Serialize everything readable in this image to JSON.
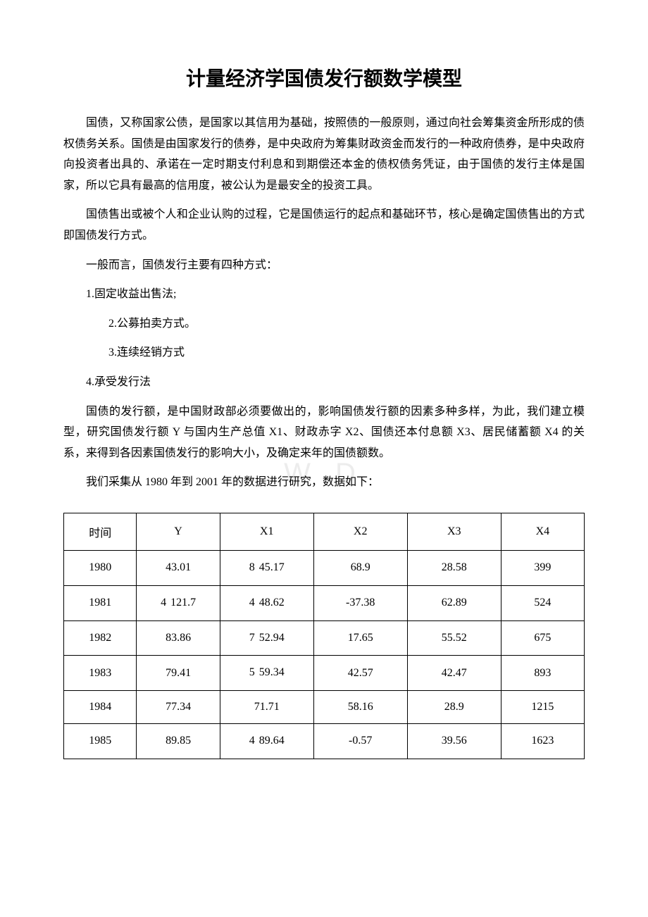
{
  "title": "计量经济学国债发行额数学模型",
  "watermark": "W    D",
  "paragraphs": {
    "p1": "国债，又称国家公债，是国家以其信用为基础，按照债的一般原则，通过向社会筹集资金所形成的债权债务关系。国债是由国家发行的债券，是中央政府为筹集财政资金而发行的一种政府债券，是中央政府向投资者出具的、承诺在一定时期支付利息和到期偿还本金的债权债务凭证，由于国债的发行主体是国家，所以它具有最高的信用度，被公认为是最安全的投资工具。",
    "p2": "国债售出或被个人和企业认购的过程，它是国债运行的起点和基础环节，核心是确定国债售出的方式即国债发行方式。",
    "p3": "一般而言，国债发行主要有四种方式：",
    "m1": "1.固定收益出售法;",
    "m2": "2.公募拍卖方式。",
    "m3": "3.连续经销方式",
    "m4": "4.承受发行法",
    "p4": "国债的发行额，是中国财政部必须要做出的，影响国债发行额的因素多种多样，为此，我们建立模型，研究国债发行额 Y 与国内生产总值 X1、财政赤字 X2、国债还本付息额 X3、居民储蓄额 X4 的关系，来得到各因素国债发行的影响大小，及确定来年的国债额数。",
    "p5": "我们采集从 1980 年到 2001 年的数据进行研究，数据如下："
  },
  "table": {
    "columns": [
      "时间",
      "Y",
      "X1",
      "X2",
      "X3",
      "X4"
    ],
    "rows": [
      {
        "time": "1980",
        "y": {
          "sub": "",
          "main": "43.01"
        },
        "x1": {
          "sub": "8",
          "main": "45.17"
        },
        "x2": "68.9",
        "x3": "28.58",
        "x4": "399"
      },
      {
        "time": "1981",
        "y": {
          "sub": "4",
          "main": "121.7"
        },
        "x1": {
          "sub": "4",
          "main": "48.62"
        },
        "x2": "-37.38",
        "x3": "62.89",
        "x4": "524"
      },
      {
        "time": "1982",
        "y": {
          "sub": "",
          "main": "83.86"
        },
        "x1": {
          "sub": "7",
          "main": "52.94"
        },
        "x2": "17.65",
        "x3": "55.52",
        "x4": "675"
      },
      {
        "time": "1983",
        "y": {
          "sub": "",
          "main": "79.41"
        },
        "x1": {
          "sub": "5",
          "main": "59.34"
        },
        "x2": "42.57",
        "x3": "42.47",
        "x4": "893"
      },
      {
        "time": "1984",
        "y": {
          "sub": "",
          "main": "77.34"
        },
        "x1": {
          "sub": "",
          "main": "71.71"
        },
        "x2": "58.16",
        "x3": "28.9",
        "x4": "1215"
      },
      {
        "time": "1985",
        "y": {
          "sub": "",
          "main": "89.85"
        },
        "x1": {
          "sub": "4",
          "main": "89.64"
        },
        "x2": "-0.57",
        "x3": "39.56",
        "x4": "1623"
      }
    ],
    "col_widths": [
      "14%",
      "16%",
      "18%",
      "18%",
      "18%",
      "16%"
    ],
    "border_color": "#000000",
    "background_color": "#ffffff",
    "font_size": 16
  },
  "colors": {
    "text": "#000000",
    "background": "#ffffff",
    "watermark": "rgba(200,200,200,0.35)"
  },
  "typography": {
    "title_fontsize": 28,
    "body_fontsize": 16,
    "title_font": "SimHei",
    "body_font": "SimSun",
    "line_height": 1.85
  }
}
